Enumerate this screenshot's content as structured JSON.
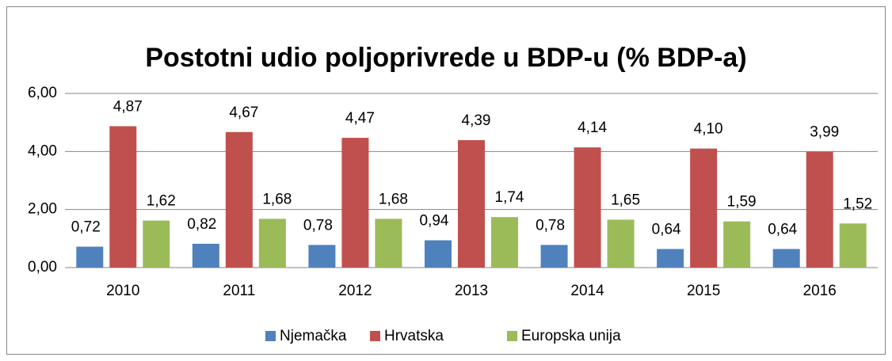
{
  "chart_data": {
    "type": "bar",
    "title": "Postotni udio poljoprivrede u BDP-u (%  BDP-a)",
    "categories": [
      "2010",
      "2011",
      "2012",
      "2013",
      "2014",
      "2015",
      "2016"
    ],
    "series": [
      {
        "name": "Njemačka",
        "color": "#4f81bd",
        "values": [
          0.72,
          0.82,
          0.78,
          0.94,
          0.78,
          0.64,
          0.64
        ],
        "value_labels": [
          "0,72",
          "0,82",
          "0,78",
          "0,94",
          "0,78",
          "0,64",
          "0,64"
        ]
      },
      {
        "name": "Hrvatska",
        "color": "#c0504d",
        "values": [
          4.87,
          4.67,
          4.47,
          4.39,
          4.14,
          4.1,
          3.99
        ],
        "value_labels": [
          "4,87",
          "4,67",
          "4,47",
          "4,39",
          "4,14",
          "4,10",
          "3,99"
        ]
      },
      {
        "name": "Europska unija",
        "color": "#9bbb59",
        "values": [
          1.62,
          1.68,
          1.68,
          1.74,
          1.65,
          1.59,
          1.52
        ],
        "value_labels": [
          "1,62",
          "1,68",
          "1,68",
          "1,74",
          "1,65",
          "1,59",
          "1,52"
        ]
      }
    ],
    "ylim": [
      0,
      6
    ],
    "yticks": [
      {
        "value": 0,
        "label": "0,00"
      },
      {
        "value": 2,
        "label": "2,00"
      },
      {
        "value": 4,
        "label": "4,00"
      },
      {
        "value": 6,
        "label": "6,00"
      }
    ],
    "grid": true,
    "legend": "bottom"
  }
}
